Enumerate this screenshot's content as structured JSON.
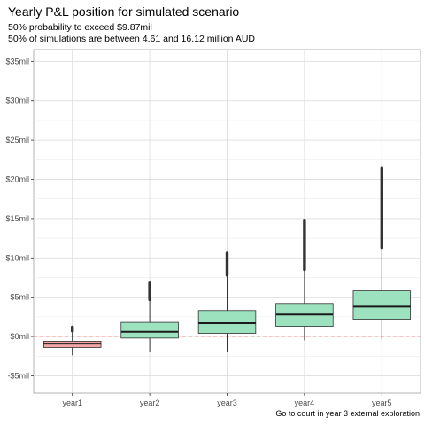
{
  "chart_data": {
    "type": "boxplot",
    "title": "Yearly P&L position for simulated scenario",
    "subtitle_lines": [
      "50% probability to exceed $9.87mil",
      "50% of simulations are between 4.61 and 16.12 million AUD"
    ],
    "caption": "Go to court in year 3 external exploration",
    "xlabel": "",
    "ylabel": "",
    "ylim": [
      -7.2,
      36.5
    ],
    "y_ticks": [
      -5,
      0,
      5,
      10,
      15,
      20,
      25,
      30,
      35
    ],
    "y_tick_labels": [
      "-$5mil",
      "$0mil",
      "$5mil",
      "$10mil",
      "$15mil",
      "$20mil",
      "$25mil",
      "$30mil",
      "$35mil"
    ],
    "categories": [
      "year1",
      "year2",
      "year3",
      "year4",
      "year5"
    ],
    "reference_line_y": 0,
    "grid": true,
    "boxes": [
      {
        "category": "year1",
        "whisker_low": -2.4,
        "q1": -1.4,
        "median": -0.9,
        "q3": -0.6,
        "whisker_high": 0.7,
        "outlier_max": 1.2,
        "fill": "#f4a6a6"
      },
      {
        "category": "year2",
        "whisker_low": -1.9,
        "q1": -0.2,
        "median": 0.6,
        "q3": 1.8,
        "whisker_high": 4.7,
        "outlier_max": 6.9,
        "fill": "#9de2bf"
      },
      {
        "category": "year3",
        "whisker_low": -1.9,
        "q1": 0.4,
        "median": 1.7,
        "q3": 3.3,
        "whisker_high": 7.8,
        "outlier_max": 10.6,
        "fill": "#9de2bf"
      },
      {
        "category": "year4",
        "whisker_low": -0.5,
        "q1": 1.3,
        "median": 2.8,
        "q3": 4.2,
        "whisker_high": 8.5,
        "outlier_max": 14.8,
        "fill": "#9de2bf"
      },
      {
        "category": "year5",
        "whisker_low": -0.4,
        "q1": 2.2,
        "median": 3.8,
        "q3": 5.8,
        "whisker_high": 11.3,
        "outlier_max": 21.4,
        "fill": "#9de2bf"
      }
    ]
  }
}
